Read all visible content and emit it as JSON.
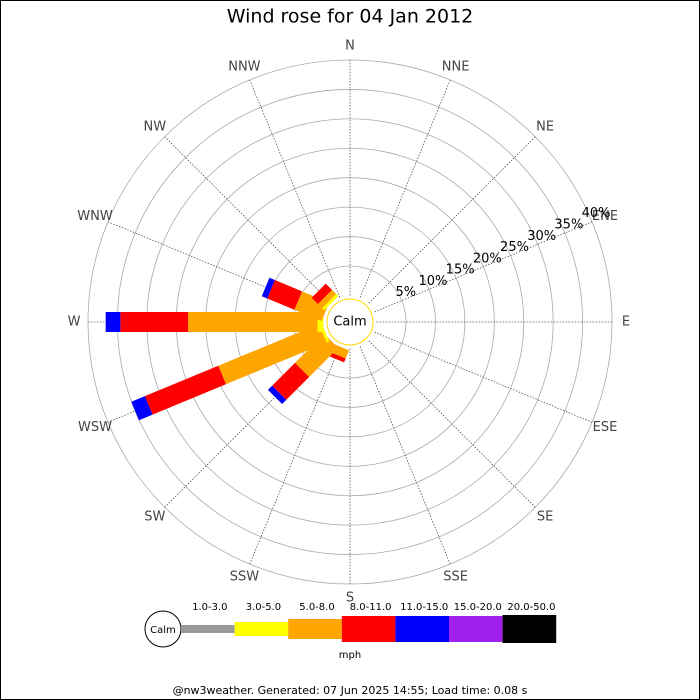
{
  "chart_data": {
    "type": "windrose",
    "title": "Wind rose for 04 Jan 2012",
    "directions": [
      "N",
      "NNE",
      "NE",
      "ENE",
      "E",
      "ESE",
      "SE",
      "SSE",
      "S",
      "SSW",
      "SW",
      "WSW",
      "W",
      "WNW",
      "NW",
      "NNW"
    ],
    "series": [
      {
        "name": "1.0-3.0",
        "color": "#999999",
        "values": [
          0,
          0,
          0,
          0,
          0,
          0,
          0,
          0,
          0,
          0,
          0,
          0,
          0,
          0,
          0,
          0
        ]
      },
      {
        "name": "3.0-5.0",
        "color": "#ffff00",
        "values": [
          0,
          0,
          0,
          0,
          0,
          0,
          0,
          0,
          0,
          0,
          0,
          0.5,
          1,
          0,
          0.5,
          0
        ]
      },
      {
        "name": "5.0-8.0",
        "color": "#ffa500",
        "values": [
          0,
          0,
          0,
          0,
          0,
          0,
          0,
          0,
          0,
          1.5,
          7,
          18.5,
          22,
          5,
          1,
          0
        ]
      },
      {
        "name": "8.0-11.0",
        "color": "#ff0000",
        "values": [
          0,
          0,
          0,
          0,
          0,
          0,
          0,
          0,
          0,
          0.7,
          5.5,
          13.5,
          11.5,
          5,
          1.5,
          0
        ]
      },
      {
        "name": "11.0-15.0",
        "color": "#0000ff",
        "values": [
          0,
          0,
          0,
          0,
          0,
          0,
          0,
          0,
          0,
          0,
          1,
          2.5,
          2.5,
          1,
          0,
          0
        ]
      },
      {
        "name": "15.0-20.0",
        "color": "#a020f0",
        "values": [
          0,
          0,
          0,
          0,
          0,
          0,
          0,
          0,
          0,
          0,
          0,
          0,
          0,
          0,
          0,
          0
        ]
      },
      {
        "name": "20.0-50.0",
        "color": "#000000",
        "values": [
          0,
          0,
          0,
          0,
          0,
          0,
          0,
          0,
          0,
          0,
          0,
          0,
          0,
          0,
          0,
          0
        ]
      }
    ],
    "rlim": [
      0,
      40
    ],
    "rticks": [
      {
        "value": 5,
        "label": "5%"
      },
      {
        "value": 10,
        "label": "10%"
      },
      {
        "value": 15,
        "label": "15%"
      },
      {
        "value": 20,
        "label": "20%"
      },
      {
        "value": 25,
        "label": "25%"
      },
      {
        "value": 30,
        "label": "30%"
      },
      {
        "value": 35,
        "label": "35%"
      },
      {
        "value": 40,
        "label": "40%"
      }
    ],
    "calm_label": "Calm",
    "unit": "mph",
    "footer": "@nw3weather. Generated: 07 Jun 2025 14:55; Load time: 0.08 s"
  }
}
